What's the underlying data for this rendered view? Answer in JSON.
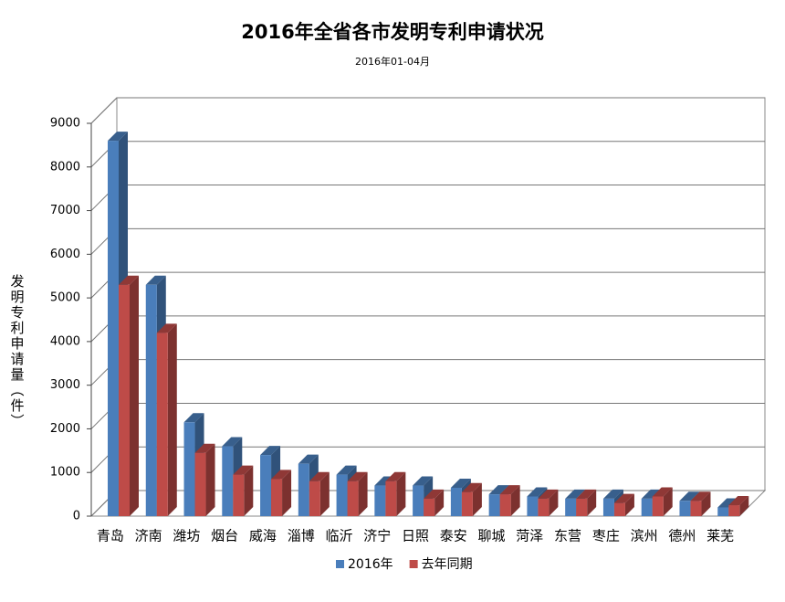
{
  "chart_data": {
    "type": "bar3d",
    "title": "2016年全省各市发明专利申请状况",
    "subtitle": "2016年01-04月",
    "y_label": "发明专利申请量（件）",
    "categories": [
      "青岛",
      "济南",
      "潍坊",
      "烟台",
      "威海",
      "淄博",
      "临沂",
      "济宁",
      "日照",
      "泰安",
      "聊城",
      "菏泽",
      "东营",
      "枣庄",
      "滨州",
      "德州",
      "莱芜"
    ],
    "series": [
      {
        "name": "2016年",
        "color": "#4a7ebb",
        "values": [
          8600,
          5300,
          2150,
          1600,
          1400,
          1200,
          950,
          700,
          700,
          650,
          500,
          450,
          400,
          400,
          400,
          350,
          200
        ]
      },
      {
        "name": "去年同期",
        "color": "#be4b48",
        "values": [
          5300,
          4200,
          1450,
          950,
          850,
          800,
          800,
          800,
          400,
          550,
          500,
          400,
          400,
          300,
          450,
          350,
          250
        ]
      }
    ],
    "ylim": [
      0,
      9000
    ],
    "yticks": [
      0,
      1000,
      2000,
      3000,
      4000,
      5000,
      6000,
      7000,
      8000,
      9000
    ],
    "grid": true
  }
}
